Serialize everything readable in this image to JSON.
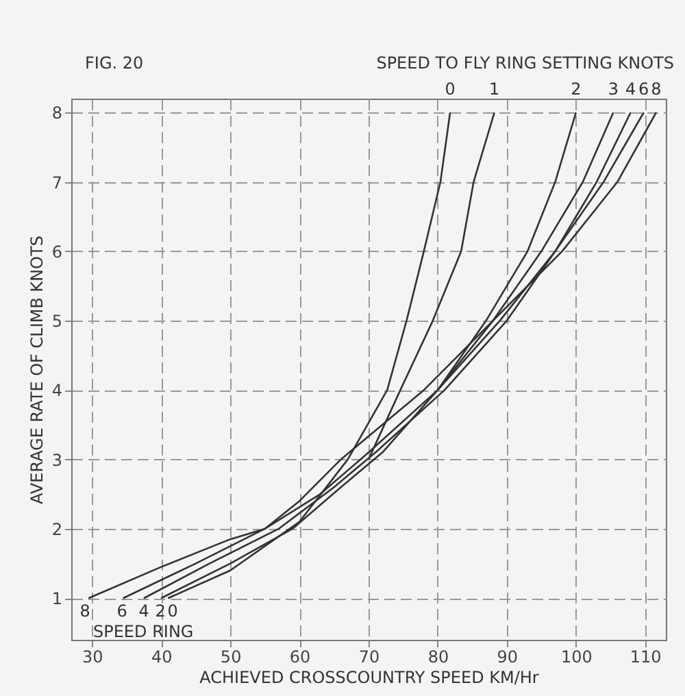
{
  "chart_data": {
    "type": "line",
    "xlabel": "ACHIEVED CROSSCOUNTRY SPEED   KM/Hr",
    "ylabel": "AVERAGE RATE OF CLIMB KNOTS",
    "legend_title": "SPEED TO FLY RING SETTING KNOTS",
    "annotations": [
      "FIG. 20",
      "8",
      "6",
      "4",
      "2",
      "0",
      "SPEED RING"
    ],
    "xlim": [
      27,
      113
    ],
    "ylim": [
      0.4,
      8.2
    ],
    "xticks": [
      30,
      40,
      50,
      60,
      70,
      80,
      90,
      100,
      110
    ],
    "yticks": [
      1,
      2,
      3,
      4,
      5,
      6,
      7,
      8
    ],
    "grid": true,
    "marker": "none",
    "line_style": "solid",
    "series": [
      {
        "name": "0",
        "color": "#333333",
        "x": [
          41,
          50,
          60,
          67,
          72.7,
          75.5,
          78,
          80.4,
          81.8
        ],
        "values": [
          1,
          1.4,
          2.1,
          3,
          4,
          5,
          6,
          7,
          8
        ]
      },
      {
        "name": "1",
        "color": "#333333",
        "x": [
          70,
          74.6,
          79.3,
          83.4,
          85.2,
          88.2
        ],
        "values": [
          3,
          4,
          5,
          6,
          7,
          8
        ]
      },
      {
        "name": "2",
        "color": "#333333",
        "x": [
          40,
          50,
          59,
          66,
          72,
          80,
          87,
          93,
          97,
          100
        ],
        "values": [
          1,
          1.5,
          2,
          2.6,
          3.1,
          4,
          5,
          6,
          7,
          8
        ]
      },
      {
        "name": "3",
        "color": "#333333",
        "x": [
          80,
          88,
          95,
          101,
          105.4
        ],
        "values": [
          4,
          5,
          6,
          7,
          8
        ]
      },
      {
        "name": "4",
        "color": "#333333",
        "x": [
          37.5,
          47,
          57,
          65,
          71,
          81,
          90,
          97,
          103,
          107.9
        ],
        "values": [
          1,
          1.5,
          2,
          2.6,
          3.1,
          4,
          5,
          6,
          7,
          8
        ]
      },
      {
        "name": "6",
        "color": "#333333",
        "x": [
          34.5,
          45,
          55,
          63,
          70,
          80,
          89,
          97,
          104,
          109.8
        ],
        "values": [
          1,
          1.5,
          2,
          2.5,
          3.1,
          4,
          5,
          6,
          7,
          8
        ]
      },
      {
        "name": "8",
        "color": "#333333",
        "x": [
          29.5,
          40,
          50,
          55,
          60,
          66,
          72,
          78,
          88,
          98,
          106,
          111.6
        ],
        "values": [
          1,
          1.45,
          1.85,
          2,
          2.4,
          3,
          3.5,
          4,
          5,
          6,
          7,
          8
        ]
      }
    ]
  }
}
